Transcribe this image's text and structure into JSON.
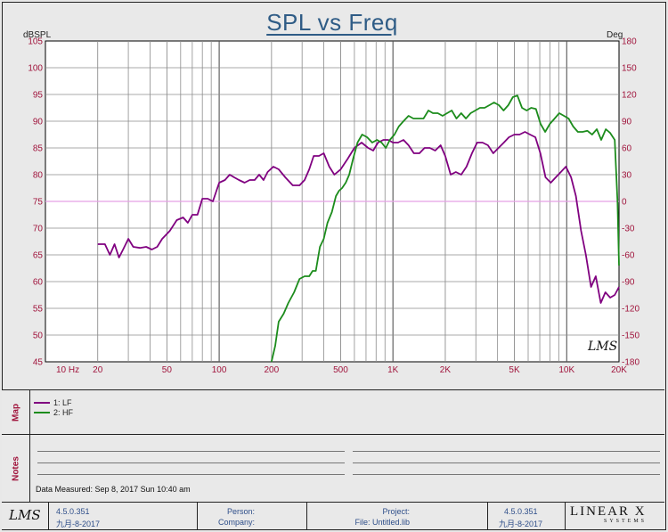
{
  "chart_data": {
    "type": "line",
    "title": "SPL vs Freq",
    "xscale": "log",
    "xlim": [
      10,
      20000
    ],
    "ylim": [
      45,
      105
    ],
    "y2lim": [
      -180,
      180
    ],
    "ylabel": "dBSPL",
    "y2label": "Deg",
    "x_ticks": [
      {
        "v": 10,
        "t": "10  Hz"
      },
      {
        "v": 20,
        "t": "20"
      },
      {
        "v": 50,
        "t": "50"
      },
      {
        "v": 100,
        "t": "100"
      },
      {
        "v": 200,
        "t": "200"
      },
      {
        "v": 500,
        "t": "500"
      },
      {
        "v": 1000,
        "t": "1K"
      },
      {
        "v": 2000,
        "t": "2K"
      },
      {
        "v": 5000,
        "t": "5K"
      },
      {
        "v": 10000,
        "t": "10K"
      },
      {
        "v": 20000,
        "t": "20K"
      }
    ],
    "y_ticks": [
      "45",
      "50",
      "55",
      "60",
      "65",
      "70",
      "75",
      "80",
      "85",
      "90",
      "95",
      "100",
      "105"
    ],
    "y2_ticks": [
      "-180",
      "-150",
      "-120",
      "-90",
      "-60",
      "-30",
      "0",
      "30",
      "60",
      "90",
      "120",
      "150",
      "180"
    ],
    "grid": true,
    "reference_line_db": 75,
    "series": [
      {
        "name": "LF",
        "color": "#800080",
        "points": [
          [
            20,
            67
          ],
          [
            22,
            67
          ],
          [
            23.5,
            65
          ],
          [
            25,
            67
          ],
          [
            26.5,
            64.5
          ],
          [
            28,
            66
          ],
          [
            30,
            68
          ],
          [
            32,
            66.5
          ],
          [
            35,
            66.3
          ],
          [
            38,
            66.5
          ],
          [
            41,
            66
          ],
          [
            44,
            66.5
          ],
          [
            47,
            68
          ],
          [
            52,
            69.5
          ],
          [
            57,
            71.5
          ],
          [
            62,
            72
          ],
          [
            66,
            71
          ],
          [
            70,
            72.5
          ],
          [
            75,
            72.5
          ],
          [
            80,
            75.5
          ],
          [
            86,
            75.5
          ],
          [
            92,
            75
          ],
          [
            100,
            78.5
          ],
          [
            108,
            79
          ],
          [
            115,
            80
          ],
          [
            122,
            79.5
          ],
          [
            130,
            79
          ],
          [
            140,
            78.5
          ],
          [
            150,
            79
          ],
          [
            160,
            79
          ],
          [
            170,
            80
          ],
          [
            180,
            79
          ],
          [
            190,
            80.5
          ],
          [
            205,
            81.5
          ],
          [
            220,
            81
          ],
          [
            240,
            79.5
          ],
          [
            265,
            78
          ],
          [
            290,
            78
          ],
          [
            310,
            79
          ],
          [
            330,
            81
          ],
          [
            350,
            83.5
          ],
          [
            375,
            83.5
          ],
          [
            400,
            84
          ],
          [
            430,
            81.5
          ],
          [
            460,
            80
          ],
          [
            500,
            81
          ],
          [
            550,
            83
          ],
          [
            600,
            85
          ],
          [
            660,
            86
          ],
          [
            720,
            85
          ],
          [
            770,
            84.5
          ],
          [
            820,
            86
          ],
          [
            880,
            86.5
          ],
          [
            940,
            86.5
          ],
          [
            1000,
            86
          ],
          [
            1070,
            86
          ],
          [
            1150,
            86.5
          ],
          [
            1230,
            85.5
          ],
          [
            1320,
            84
          ],
          [
            1420,
            84
          ],
          [
            1520,
            85
          ],
          [
            1630,
            85
          ],
          [
            1750,
            84.5
          ],
          [
            1880,
            85.5
          ],
          [
            2000,
            83.5
          ],
          [
            2150,
            80
          ],
          [
            2300,
            80.5
          ],
          [
            2470,
            80
          ],
          [
            2650,
            81.5
          ],
          [
            2850,
            84
          ],
          [
            3050,
            86
          ],
          [
            3280,
            86
          ],
          [
            3520,
            85.5
          ],
          [
            3780,
            84
          ],
          [
            4050,
            85
          ],
          [
            4350,
            86
          ],
          [
            4650,
            87
          ],
          [
            5000,
            87.5
          ],
          [
            5350,
            87.5
          ],
          [
            5750,
            88
          ],
          [
            6150,
            87.5
          ],
          [
            6600,
            87
          ],
          [
            7050,
            84
          ],
          [
            7550,
            79.5
          ],
          [
            8100,
            78.5
          ],
          [
            8650,
            79.5
          ],
          [
            9250,
            80.5
          ],
          [
            9900,
            81.5
          ],
          [
            10600,
            79.5
          ],
          [
            11300,
            76
          ],
          [
            12100,
            69.5
          ],
          [
            12900,
            65
          ],
          [
            13800,
            59
          ],
          [
            14700,
            61
          ],
          [
            15700,
            56
          ],
          [
            16700,
            58
          ],
          [
            17800,
            57
          ],
          [
            18900,
            57.5
          ],
          [
            20000,
            59
          ]
        ]
      },
      {
        "name": "HF",
        "color": "#1c8c1c",
        "points": [
          [
            200,
            45
          ],
          [
            210,
            48
          ],
          [
            220,
            52.5
          ],
          [
            235,
            54
          ],
          [
            250,
            56
          ],
          [
            270,
            58
          ],
          [
            290,
            60.5
          ],
          [
            310,
            61
          ],
          [
            330,
            61
          ],
          [
            345,
            62
          ],
          [
            360,
            62
          ],
          [
            380,
            66.5
          ],
          [
            400,
            68
          ],
          [
            420,
            71
          ],
          [
            445,
            73
          ],
          [
            470,
            76
          ],
          [
            490,
            77
          ],
          [
            510,
            77.5
          ],
          [
            535,
            78.5
          ],
          [
            560,
            80
          ],
          [
            590,
            83
          ],
          [
            625,
            86
          ],
          [
            665,
            87.5
          ],
          [
            710,
            87
          ],
          [
            760,
            86
          ],
          [
            810,
            86.5
          ],
          [
            860,
            86
          ],
          [
            910,
            85
          ],
          [
            960,
            86.5
          ],
          [
            1020,
            87.5
          ],
          [
            1080,
            89
          ],
          [
            1150,
            90
          ],
          [
            1230,
            91
          ],
          [
            1310,
            90.5
          ],
          [
            1400,
            90.5
          ],
          [
            1500,
            90.5
          ],
          [
            1600,
            92
          ],
          [
            1700,
            91.5
          ],
          [
            1810,
            91.5
          ],
          [
            1930,
            91
          ],
          [
            2050,
            91.5
          ],
          [
            2180,
            92
          ],
          [
            2320,
            90.5
          ],
          [
            2470,
            91.5
          ],
          [
            2630,
            90.5
          ],
          [
            2800,
            91.5
          ],
          [
            2980,
            92
          ],
          [
            3170,
            92.5
          ],
          [
            3370,
            92.5
          ],
          [
            3590,
            93
          ],
          [
            3820,
            93.5
          ],
          [
            4070,
            93
          ],
          [
            4330,
            92
          ],
          [
            4610,
            93
          ],
          [
            4900,
            94.5
          ],
          [
            5200,
            94.8
          ],
          [
            5530,
            92.5
          ],
          [
            5880,
            92
          ],
          [
            6250,
            92.5
          ],
          [
            6650,
            92.3
          ],
          [
            7070,
            89.5
          ],
          [
            7520,
            88
          ],
          [
            8000,
            89.5
          ],
          [
            8520,
            90.5
          ],
          [
            9060,
            91.5
          ],
          [
            9640,
            91
          ],
          [
            10260,
            90.5
          ],
          [
            10900,
            89
          ],
          [
            11600,
            88
          ],
          [
            12350,
            88
          ],
          [
            13150,
            88.2
          ],
          [
            14000,
            87.5
          ],
          [
            14900,
            88.5
          ],
          [
            15800,
            86.5
          ],
          [
            16800,
            88.5
          ],
          [
            17800,
            87.8
          ],
          [
            18900,
            86.5
          ],
          [
            19600,
            75
          ],
          [
            20000,
            63
          ]
        ]
      }
    ]
  },
  "map": {
    "tab": "Map",
    "legend": [
      {
        "label": "1: LF",
        "color": "#800080"
      },
      {
        "label": "2: HF",
        "color": "#1c8c1c"
      }
    ]
  },
  "notes": {
    "tab": "Notes",
    "measured": "Data Measured: Sep 8, 2017 Sun 10:40 am"
  },
  "footer": {
    "logo": "LMS",
    "version_left": "4.5.0.351",
    "date_left": "九月-8-2017",
    "person_label": "Person:",
    "company_label": "Company:",
    "project_label": "Project:",
    "file_label": "File: Untitled.lib",
    "version_right": "4.5.0.351",
    "date_right": "九月-8-2017",
    "brand": "LINEAR X",
    "brand_sub": "SYSTEMS"
  },
  "chart_watermark": "LMS",
  "colors": {
    "tick_label": "#a0143c",
    "title": "#2f5c86",
    "grid": "#8c8c8c",
    "reference": "#e5a0e5"
  }
}
